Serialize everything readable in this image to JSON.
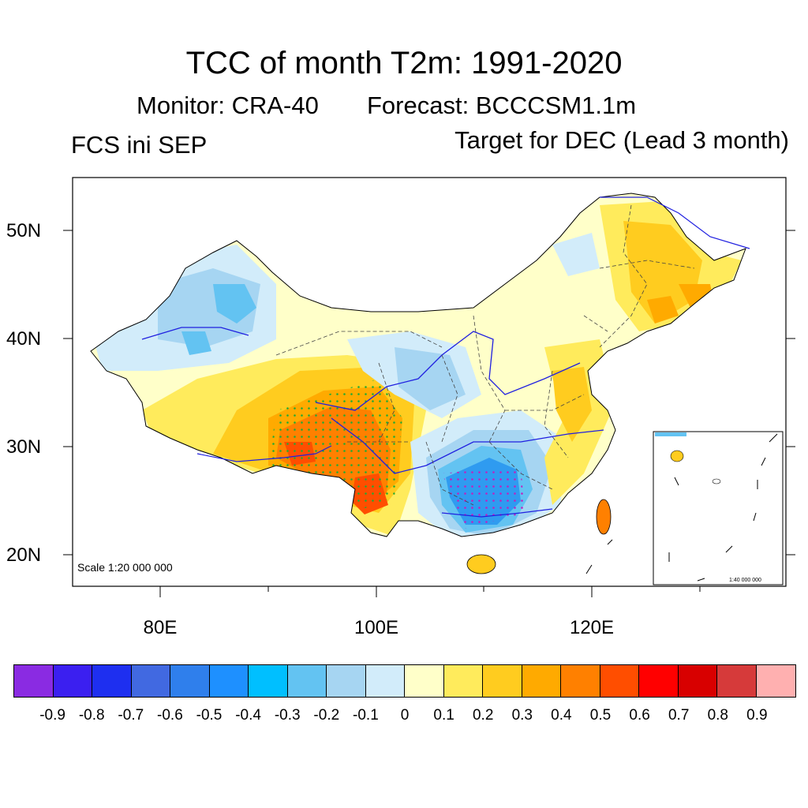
{
  "title": "TCC of month T2m: 1991-2020",
  "subtitle": {
    "monitor": "Monitor: CRA-40",
    "forecast": "Forecast: BCCCSM1.1m"
  },
  "left_string": "FCS ini SEP",
  "right_string": "Target for DEC (Lead 3 month)",
  "map": {
    "lat_labels": [
      "50N",
      "40N",
      "30N",
      "20N"
    ],
    "lon_labels": [
      "80E",
      "100E",
      "120E"
    ],
    "scale_label": "Scale 1:20 000 000",
    "inset_scale_label": "1:40 000 000"
  },
  "colorbar": {
    "colors": [
      "#8a2be2",
      "#3b1ff0",
      "#1e2ff0",
      "#4169e1",
      "#2f7fec",
      "#1e90ff",
      "#00bfff",
      "#63c3f2",
      "#a6d5f2",
      "#d2ecfa",
      "#ffffc9",
      "#ffeb5c",
      "#ffcc1f",
      "#ffaa00",
      "#ff8000",
      "#ff4e00",
      "#ff0000",
      "#d80000",
      "#d63a3a",
      "#ffb0b0"
    ],
    "labels": [
      "-0.9",
      "-0.8",
      "-0.7",
      "-0.6",
      "-0.5",
      "-0.4",
      "-0.3",
      "-0.2",
      "-0.1",
      "0",
      "0.1",
      "0.2",
      "0.3",
      "0.4",
      "0.5",
      "0.6",
      "0.7",
      "0.8",
      "0.9"
    ]
  }
}
